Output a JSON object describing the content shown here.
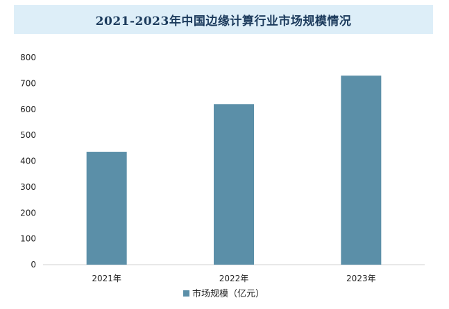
{
  "title": "2021-2023年中国边缘计算行业市场规模情况",
  "chart_data": {
    "type": "bar",
    "categories": [
      "2021年",
      "2022年",
      "2023年"
    ],
    "series": [
      {
        "name": "市场规模（亿元）",
        "values": [
          436,
          620,
          730
        ],
        "color": "#5b8fa8"
      }
    ],
    "ylim": [
      0,
      800
    ],
    "yticks": [
      0,
      100,
      200,
      300,
      400,
      500,
      600,
      700,
      800
    ],
    "grid": false,
    "legend_position": "bottom"
  }
}
